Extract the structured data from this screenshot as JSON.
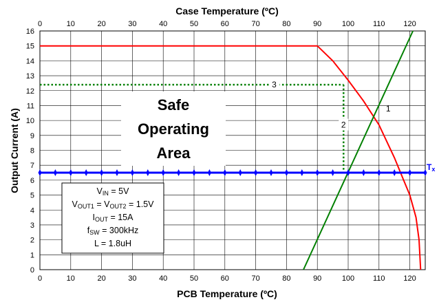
{
  "chart_data": {
    "type": "line",
    "title": "",
    "xlabel": "PCB Temperature (ºC)",
    "x2label": "Case Temperature (ºC)",
    "ylabel": "Output Current (A)",
    "xlim": [
      0,
      125
    ],
    "x2lim": [
      0,
      125
    ],
    "ylim": [
      0,
      16
    ],
    "x_ticks": [
      "0",
      "10",
      "20",
      "30",
      "40",
      "50",
      "60",
      "70",
      "80",
      "90",
      "100",
      "110",
      "120"
    ],
    "x2_ticks": [
      "0",
      "10",
      "20",
      "30",
      "40",
      "50",
      "60",
      "70",
      "80",
      "90",
      "100",
      "110",
      "120"
    ],
    "y_ticks": [
      "0",
      "1",
      "2",
      "3",
      "4",
      "5",
      "6",
      "7",
      "8",
      "9",
      "10",
      "11",
      "12",
      "13",
      "14",
      "15",
      "16"
    ],
    "grid": true,
    "colors": {
      "derating": "#ff0000",
      "case_temp": "#008000",
      "tx": "#0000ff",
      "guide": "#008000"
    },
    "series": [
      {
        "key": "derating",
        "x": [
          0,
          90,
          95,
          100,
          105,
          110,
          115,
          118,
          120,
          122,
          123,
          123.5
        ],
        "y": [
          15,
          15,
          14,
          12.7,
          11.3,
          9.7,
          7.5,
          6.0,
          5.0,
          3.5,
          2.0,
          0
        ]
      },
      {
        "key": "case_temp",
        "x": [
          85.5,
          121
        ],
        "y": [
          0,
          16
        ]
      },
      {
        "key": "tx",
        "x": [
          0,
          125
        ],
        "y": [
          6.5,
          6.5
        ],
        "markers_x": [
          0,
          5,
          10,
          15,
          20,
          25,
          30,
          35,
          40,
          45,
          50,
          55,
          60,
          65,
          70,
          75,
          80,
          85,
          90,
          95,
          100,
          105,
          110,
          115,
          120,
          125
        ]
      }
    ],
    "guides": {
      "h_y": 12.4,
      "h_x_end": 98.5,
      "v_x": 98.5,
      "v_y_start": 12.4,
      "v_y_end": 6.5
    },
    "annotations": {
      "tx_label_main": "T",
      "tx_label_sub": "x",
      "point_1": "1",
      "point_2": "2",
      "point_3": "3"
    },
    "safe_area": [
      "Safe",
      "Operating",
      "Area"
    ],
    "params": [
      {
        "pre": "V",
        "sub": "IN",
        "post": " = 5V",
        "sub2": "",
        "post2": ""
      },
      {
        "pre": "V",
        "sub": "OUT1",
        "post": " = V",
        "sub2": "OUT2",
        "post2": " = 1.5V"
      },
      {
        "pre": "I",
        "sub": "OUT",
        "post": " = 15A",
        "sub2": "",
        "post2": ""
      },
      {
        "pre": "f",
        "sub": "SW",
        "post": " = 300kHz",
        "sub2": "",
        "post2": ""
      },
      {
        "pre": "L = 1.8uH",
        "sub": "",
        "post": "",
        "sub2": "",
        "post2": ""
      }
    ]
  }
}
